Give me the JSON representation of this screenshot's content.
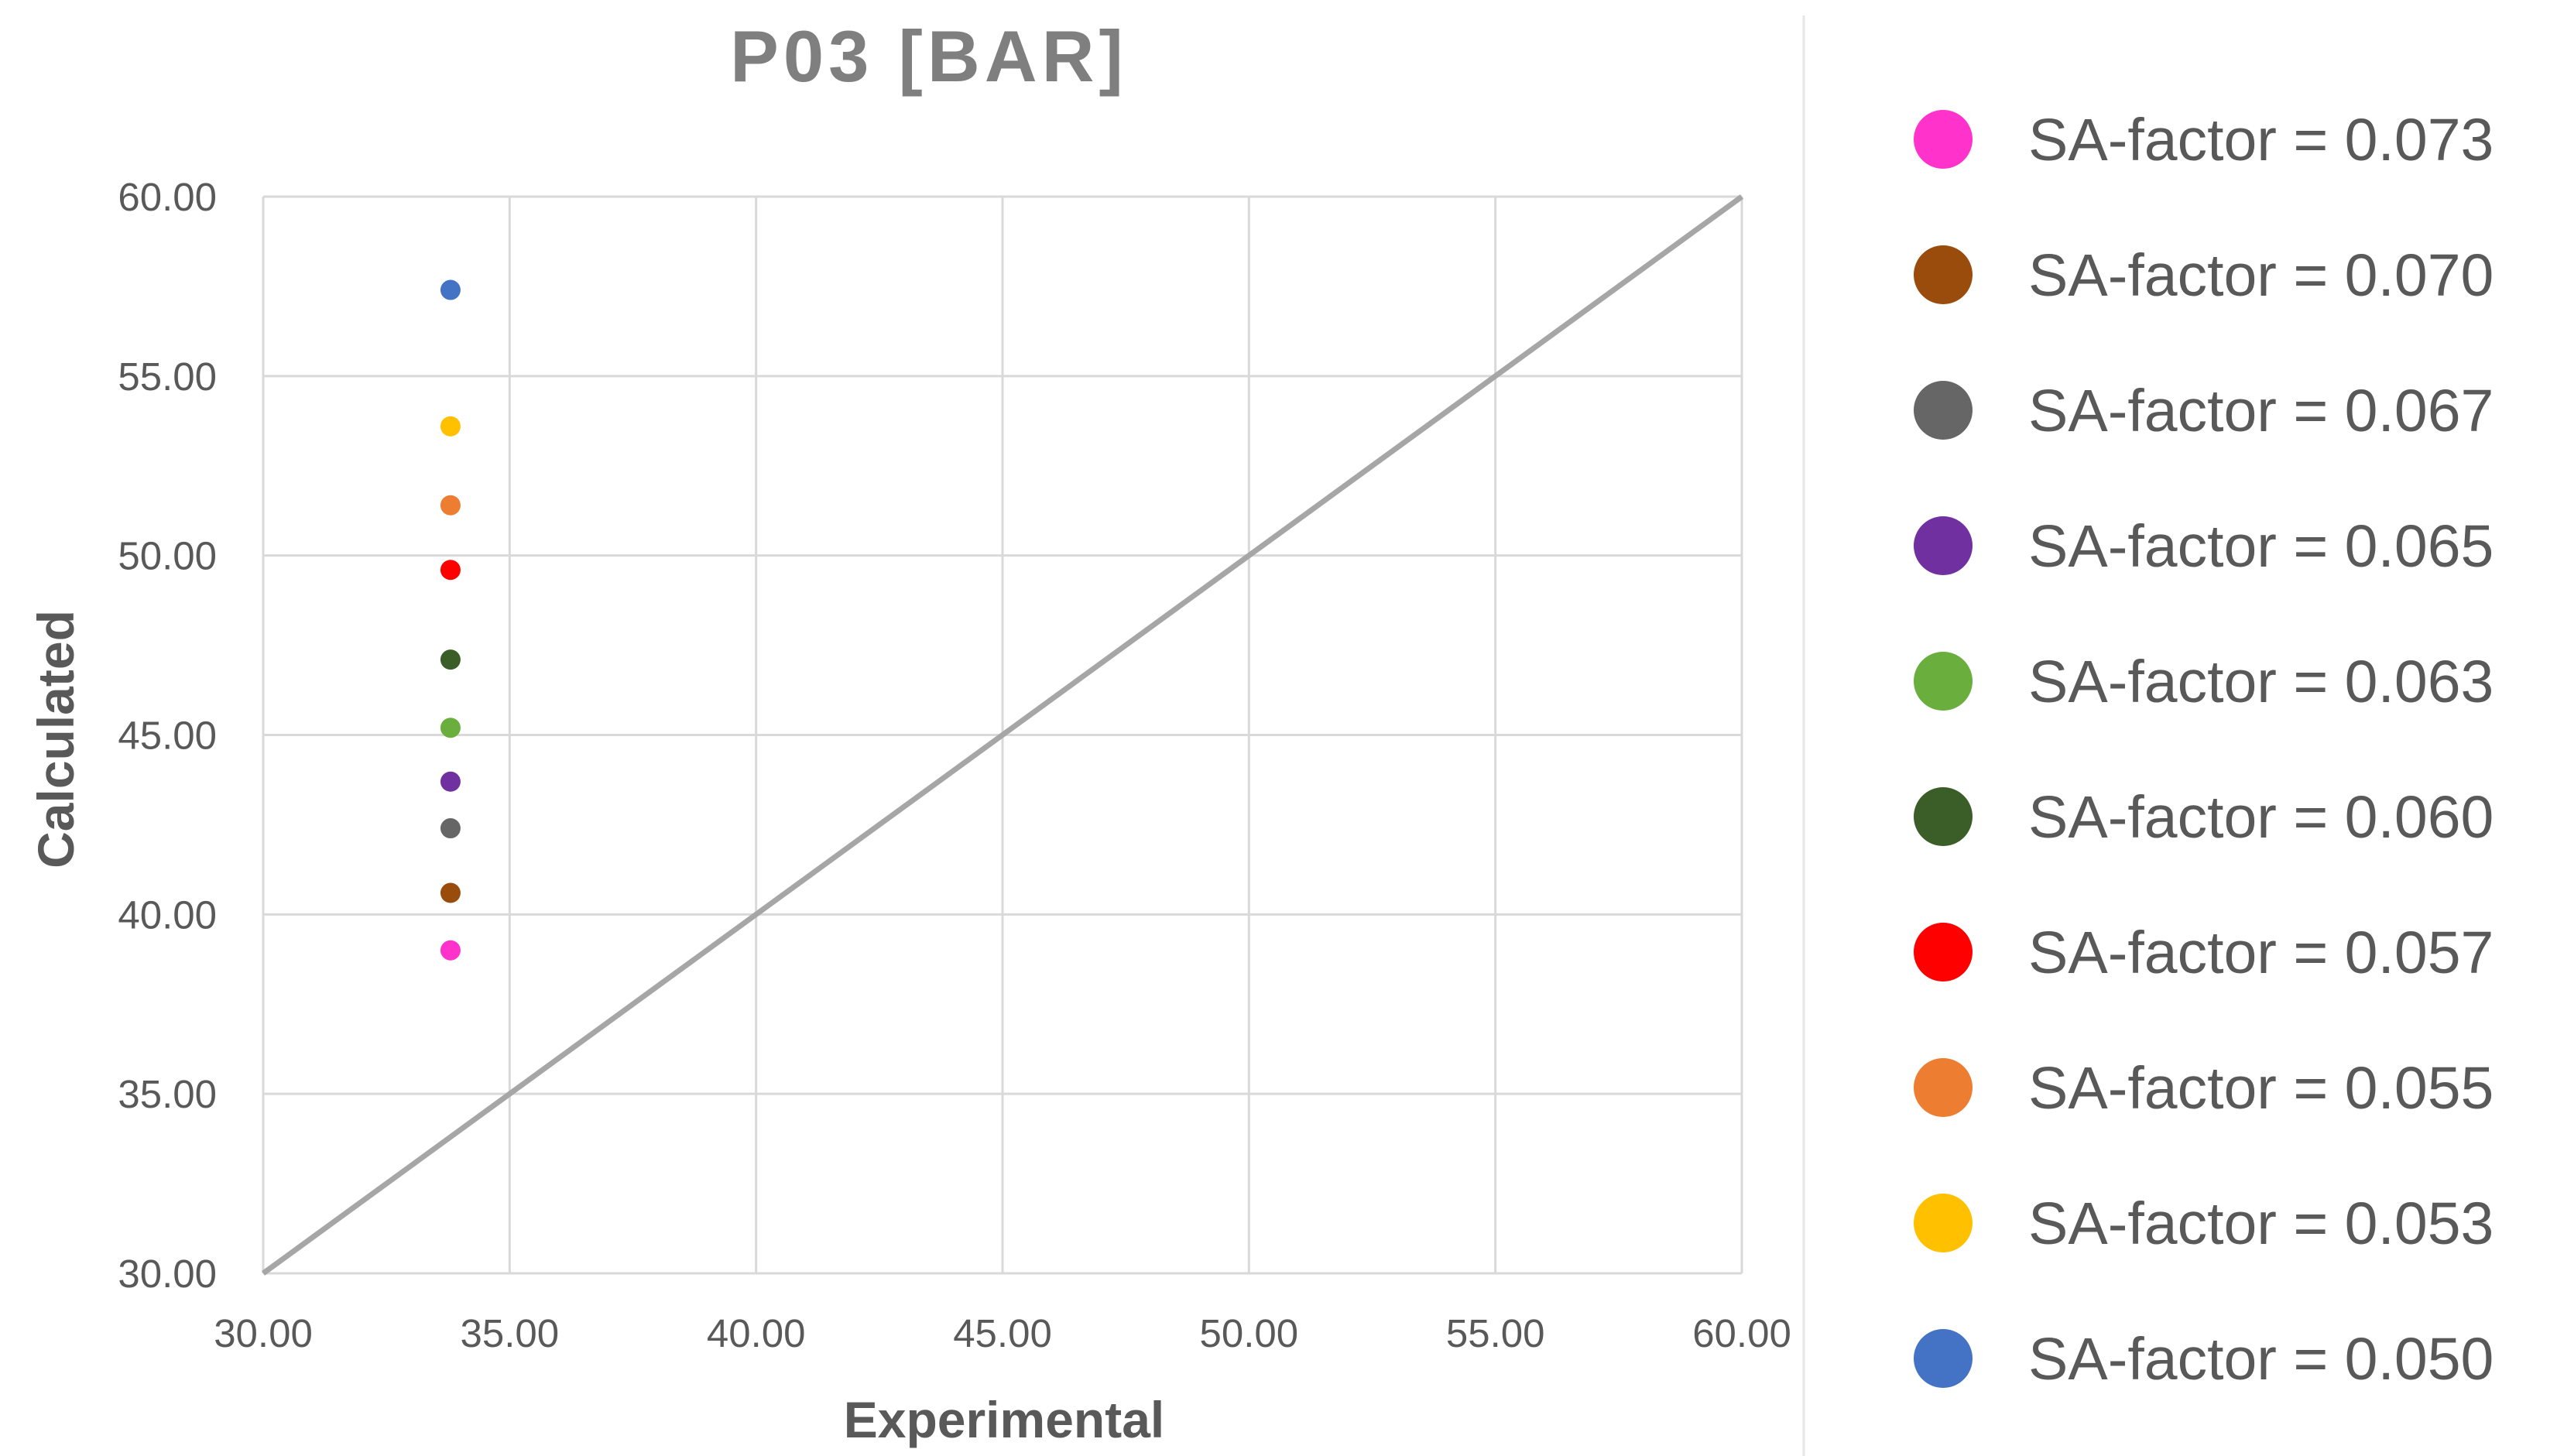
{
  "chart_data": {
    "type": "scatter",
    "title": "P03 [BAR]",
    "xlabel": "Experimental",
    "ylabel": "Calculated",
    "xlim": [
      30,
      60
    ],
    "ylim": [
      30,
      60
    ],
    "x_ticks": [
      "30.00",
      "35.00",
      "40.00",
      "45.00",
      "50.00",
      "55.00",
      "60.00"
    ],
    "y_ticks": [
      "30.00",
      "35.00",
      "40.00",
      "45.00",
      "50.00",
      "55.00",
      "60.00"
    ],
    "grid": true,
    "legend_position": "right",
    "reference_line": {
      "x": [
        30,
        60
      ],
      "y": [
        30,
        60
      ],
      "color": "#a6a6a6"
    },
    "series": [
      {
        "name": "SA-factor = 0.073",
        "color": "#ff33cc",
        "x": [
          33.8
        ],
        "y": [
          39.0
        ]
      },
      {
        "name": "SA-factor = 0.070",
        "color": "#994c0c",
        "x": [
          33.8
        ],
        "y": [
          40.6
        ]
      },
      {
        "name": "SA-factor = 0.067",
        "color": "#666666",
        "x": [
          33.8
        ],
        "y": [
          42.4
        ]
      },
      {
        "name": "SA-factor = 0.065",
        "color": "#7030a0",
        "x": [
          33.8
        ],
        "y": [
          43.7
        ]
      },
      {
        "name": "SA-factor = 0.063",
        "color": "#6aaf3d",
        "x": [
          33.8
        ],
        "y": [
          45.2
        ]
      },
      {
        "name": "SA-factor = 0.060",
        "color": "#3b5e28",
        "x": [
          33.8
        ],
        "y": [
          47.1
        ]
      },
      {
        "name": "SA-factor = 0.057",
        "color": "#ff0000",
        "x": [
          33.8
        ],
        "y": [
          49.6
        ]
      },
      {
        "name": "SA-factor = 0.055",
        "color": "#ed7d31",
        "x": [
          33.8
        ],
        "y": [
          51.4
        ]
      },
      {
        "name": "SA-factor = 0.053",
        "color": "#ffc000",
        "x": [
          33.8
        ],
        "y": [
          53.6
        ]
      },
      {
        "name": "SA-factor = 0.050",
        "color": "#4472c4",
        "x": [
          33.8
        ],
        "y": [
          57.4
        ]
      }
    ]
  }
}
